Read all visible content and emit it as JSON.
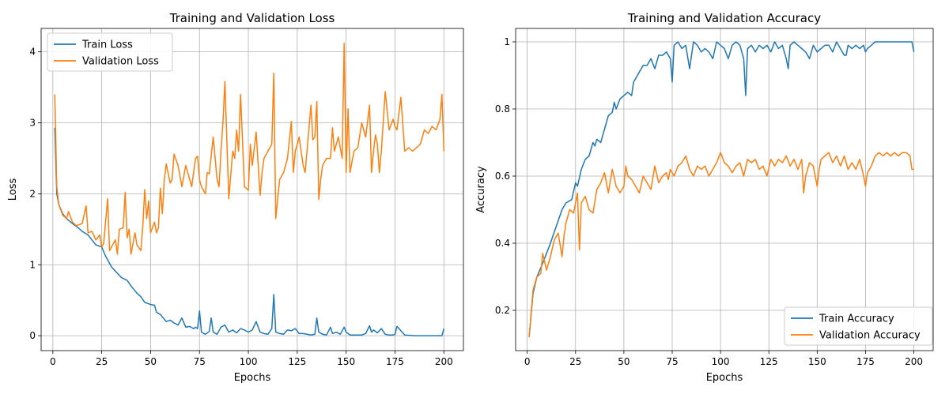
{
  "colors": {
    "train": "#1f77b4",
    "validation": "#ff7f0e",
    "grid": "#b0b0b0"
  },
  "chart_data": [
    {
      "type": "line",
      "title": "Training and Validation Loss",
      "xlabel": "Epochs",
      "ylabel": "Loss",
      "xlim": [
        -6,
        210
      ],
      "ylim": [
        -0.21,
        4.33
      ],
      "xticks": [
        0,
        25,
        50,
        75,
        100,
        125,
        150,
        175,
        200
      ],
      "yticks": [
        0,
        1,
        2,
        3,
        4
      ],
      "grid": true,
      "legend": "top-left",
      "series": [
        {
          "name": "Train Loss",
          "color": "#1f77b4",
          "x": [
            1,
            2,
            3,
            5,
            7,
            10,
            13,
            15,
            18,
            20,
            22,
            25,
            27,
            30,
            33,
            35,
            38,
            40,
            43,
            45,
            47,
            50,
            52,
            53,
            55,
            58,
            60,
            62,
            64,
            66,
            68,
            70,
            72,
            73,
            74,
            75,
            76,
            78,
            80,
            81,
            82,
            84,
            86,
            88,
            90,
            92,
            94,
            96,
            98,
            100,
            102,
            104,
            106,
            108,
            110,
            112,
            113,
            114,
            116,
            118,
            120,
            122,
            124,
            126,
            128,
            130,
            132,
            134,
            135,
            136,
            138,
            140,
            142,
            143,
            145,
            147,
            149,
            150,
            152,
            154,
            156,
            158,
            160,
            162,
            163,
            164,
            166,
            168,
            170,
            172,
            174,
            175,
            176,
            178,
            180,
            185,
            190,
            195,
            199,
            200
          ],
          "y": [
            2.93,
            2.0,
            1.85,
            1.72,
            1.65,
            1.58,
            1.52,
            1.47,
            1.42,
            1.35,
            1.28,
            1.25,
            1.12,
            0.97,
            0.88,
            0.82,
            0.78,
            0.7,
            0.6,
            0.55,
            0.47,
            0.44,
            0.43,
            0.33,
            0.3,
            0.2,
            0.22,
            0.18,
            0.15,
            0.25,
            0.12,
            0.13,
            0.1,
            0.12,
            0.1,
            0.35,
            0.05,
            0.02,
            0.06,
            0.25,
            0.05,
            0.02,
            0.12,
            0.15,
            0.05,
            0.08,
            0.04,
            0.1,
            0.08,
            0.05,
            0.08,
            0.2,
            0.05,
            0.03,
            0.02,
            0.1,
            0.58,
            0.05,
            0.03,
            0.02,
            0.08,
            0.07,
            0.1,
            0.03,
            0.03,
            0.02,
            0.01,
            0.02,
            0.25,
            0.05,
            0.02,
            0.01,
            0.12,
            0.03,
            0.05,
            0.02,
            0.12,
            0.05,
            0.01,
            0.01,
            0.01,
            0.01,
            0.03,
            0.14,
            0.05,
            0.08,
            0.04,
            0.1,
            0.02,
            0.01,
            0.01,
            0.02,
            0.13,
            0.07,
            0.01,
            0.0,
            0.0,
            0.0,
            0.0,
            0.1
          ]
        },
        {
          "name": "Validation Loss",
          "color": "#ff7f0e",
          "x": [
            1,
            2,
            3,
            5,
            7,
            8,
            10,
            12,
            15,
            17,
            18,
            20,
            22,
            24,
            25,
            26,
            28,
            29,
            30,
            32,
            33,
            34,
            36,
            37,
            38,
            39,
            40,
            42,
            43,
            45,
            46,
            47,
            48,
            49,
            50,
            52,
            53,
            54,
            55,
            56,
            57,
            58,
            60,
            61,
            62,
            64,
            66,
            68,
            70,
            71,
            72,
            73,
            74,
            75,
            76,
            78,
            79,
            80,
            82,
            84,
            85,
            86,
            87,
            88,
            90,
            92,
            93,
            94,
            95,
            96,
            98,
            100,
            101,
            102,
            104,
            106,
            107,
            108,
            110,
            112,
            113,
            114,
            116,
            118,
            120,
            122,
            123,
            124,
            126,
            128,
            129,
            130,
            132,
            133,
            134,
            135,
            136,
            137,
            138,
            140,
            142,
            143,
            144,
            146,
            148,
            149,
            150,
            151,
            152,
            154,
            156,
            158,
            160,
            162,
            163,
            164,
            165,
            166,
            167,
            168,
            170,
            172,
            174,
            175,
            176,
            178,
            180,
            182,
            184,
            186,
            188,
            190,
            192,
            194,
            196,
            198,
            199,
            200
          ],
          "y": [
            3.4,
            2.1,
            1.85,
            1.7,
            1.65,
            1.75,
            1.6,
            1.55,
            1.58,
            1.83,
            1.45,
            1.47,
            1.35,
            1.42,
            1.25,
            1.3,
            1.93,
            1.2,
            1.25,
            1.35,
            1.15,
            1.5,
            1.52,
            2.02,
            1.38,
            1.5,
            1.15,
            1.45,
            1.28,
            1.2,
            1.55,
            2.06,
            1.65,
            1.9,
            1.45,
            1.6,
            1.45,
            1.52,
            2.08,
            1.72,
            2.2,
            2.42,
            2.15,
            2.2,
            2.56,
            2.4,
            2.1,
            2.4,
            2.2,
            2.1,
            2.3,
            2.5,
            2.53,
            2.2,
            2.1,
            2.0,
            2.3,
            2.28,
            2.8,
            2.2,
            2.1,
            2.6,
            3.0,
            3.58,
            1.93,
            2.6,
            2.5,
            2.9,
            2.6,
            3.4,
            2.1,
            2.05,
            2.7,
            2.4,
            2.87,
            1.98,
            2.3,
            2.5,
            2.6,
            2.7,
            3.7,
            1.65,
            2.2,
            2.3,
            2.5,
            3.02,
            2.3,
            2.6,
            2.8,
            2.4,
            2.3,
            2.6,
            3.25,
            2.76,
            2.8,
            3.3,
            1.92,
            2.2,
            2.4,
            2.5,
            2.5,
            2.93,
            2.6,
            2.8,
            2.5,
            4.12,
            2.3,
            3.2,
            2.3,
            2.6,
            2.65,
            3.0,
            2.8,
            3.25,
            2.3,
            2.6,
            2.83,
            2.7,
            2.3,
            2.6,
            3.44,
            2.9,
            3.05,
            2.95,
            2.9,
            3.36,
            2.6,
            2.65,
            2.6,
            2.65,
            2.7,
            2.9,
            2.85,
            2.95,
            2.9,
            3.05,
            3.4,
            2.6
          ]
        }
      ]
    },
    {
      "type": "line",
      "title": "Training and Validation Accuracy",
      "xlabel": "Epochs",
      "ylabel": "Accuracy",
      "xlim": [
        -6,
        210
      ],
      "ylim": [
        0.08,
        1.04
      ],
      "xticks": [
        0,
        25,
        50,
        75,
        100,
        125,
        150,
        175,
        200
      ],
      "yticks": [
        0.2,
        0.4,
        0.6,
        0.8,
        1.0
      ],
      "grid": true,
      "legend": "bottom-right",
      "series": [
        {
          "name": "Train Accuracy",
          "color": "#1f77b4",
          "x": [
            1,
            3,
            5,
            8,
            10,
            12,
            15,
            18,
            20,
            23,
            25,
            26,
            28,
            30,
            32,
            34,
            35,
            36,
            38,
            40,
            42,
            44,
            45,
            46,
            48,
            50,
            52,
            54,
            55,
            56,
            58,
            60,
            62,
            64,
            66,
            68,
            70,
            72,
            74,
            75,
            76,
            78,
            80,
            82,
            84,
            86,
            88,
            90,
            92,
            94,
            96,
            98,
            100,
            102,
            104,
            106,
            108,
            110,
            112,
            113,
            114,
            116,
            118,
            120,
            122,
            124,
            126,
            128,
            130,
            132,
            134,
            135,
            136,
            138,
            140,
            142,
            144,
            146,
            148,
            150,
            152,
            154,
            156,
            158,
            160,
            162,
            164,
            165,
            166,
            168,
            170,
            172,
            174,
            175,
            176,
            178,
            180,
            185,
            190,
            195,
            199,
            200
          ],
          "y": [
            0.12,
            0.25,
            0.3,
            0.34,
            0.37,
            0.4,
            0.45,
            0.5,
            0.52,
            0.53,
            0.58,
            0.57,
            0.62,
            0.65,
            0.66,
            0.7,
            0.69,
            0.71,
            0.7,
            0.74,
            0.78,
            0.79,
            0.82,
            0.8,
            0.83,
            0.84,
            0.85,
            0.84,
            0.88,
            0.89,
            0.91,
            0.93,
            0.93,
            0.95,
            0.92,
            0.96,
            0.96,
            0.97,
            0.95,
            0.88,
            0.99,
            1.0,
            0.98,
            0.99,
            0.92,
            1.0,
            0.99,
            0.97,
            0.98,
            0.97,
            0.95,
            1.0,
            0.99,
            0.98,
            0.95,
            0.99,
            1.0,
            0.99,
            0.95,
            0.84,
            0.98,
            0.99,
            0.97,
            0.99,
            0.98,
            0.99,
            0.97,
            1.0,
            0.98,
            0.99,
            0.95,
            0.92,
            0.99,
            1.0,
            0.99,
            0.98,
            0.97,
            0.95,
            0.99,
            0.97,
            0.98,
            0.99,
            0.99,
            0.97,
            1.0,
            0.98,
            0.96,
            0.96,
            0.99,
            0.98,
            0.99,
            0.98,
            0.99,
            0.97,
            0.98,
            0.99,
            1.0,
            1.0,
            1.0,
            1.0,
            1.0,
            0.97
          ]
        },
        {
          "name": "Validation Accuracy",
          "color": "#ff7f0e",
          "x": [
            1,
            3,
            5,
            7,
            8,
            10,
            12,
            14,
            16,
            18,
            19,
            20,
            22,
            24,
            26,
            27,
            28,
            30,
            32,
            34,
            36,
            38,
            40,
            42,
            44,
            46,
            48,
            50,
            51,
            52,
            54,
            56,
            58,
            60,
            62,
            64,
            66,
            68,
            70,
            72,
            73,
            74,
            76,
            78,
            80,
            82,
            84,
            86,
            88,
            90,
            92,
            94,
            96,
            98,
            100,
            102,
            104,
            106,
            108,
            110,
            112,
            114,
            116,
            118,
            120,
            122,
            124,
            126,
            128,
            130,
            132,
            134,
            136,
            138,
            140,
            142,
            143,
            144,
            146,
            148,
            150,
            151,
            152,
            154,
            156,
            158,
            160,
            162,
            164,
            166,
            168,
            170,
            172,
            174,
            175,
            176,
            178,
            180,
            182,
            184,
            186,
            188,
            190,
            192,
            194,
            196,
            198,
            199,
            200
          ],
          "y": [
            0.12,
            0.26,
            0.3,
            0.31,
            0.37,
            0.32,
            0.36,
            0.41,
            0.43,
            0.36,
            0.42,
            0.46,
            0.5,
            0.49,
            0.55,
            0.38,
            0.52,
            0.54,
            0.5,
            0.49,
            0.56,
            0.58,
            0.61,
            0.55,
            0.62,
            0.57,
            0.55,
            0.57,
            0.63,
            0.6,
            0.59,
            0.57,
            0.55,
            0.6,
            0.58,
            0.56,
            0.63,
            0.58,
            0.6,
            0.61,
            0.59,
            0.62,
            0.6,
            0.63,
            0.64,
            0.66,
            0.62,
            0.6,
            0.63,
            0.62,
            0.63,
            0.6,
            0.62,
            0.64,
            0.67,
            0.64,
            0.63,
            0.61,
            0.63,
            0.64,
            0.6,
            0.65,
            0.64,
            0.65,
            0.62,
            0.63,
            0.6,
            0.65,
            0.63,
            0.65,
            0.64,
            0.66,
            0.63,
            0.65,
            0.62,
            0.65,
            0.55,
            0.6,
            0.64,
            0.63,
            0.57,
            0.62,
            0.65,
            0.66,
            0.67,
            0.64,
            0.66,
            0.63,
            0.66,
            0.62,
            0.64,
            0.62,
            0.65,
            0.6,
            0.57,
            0.61,
            0.63,
            0.66,
            0.67,
            0.66,
            0.67,
            0.66,
            0.67,
            0.66,
            0.67,
            0.67,
            0.66,
            0.62,
            0.62
          ]
        }
      ]
    }
  ]
}
